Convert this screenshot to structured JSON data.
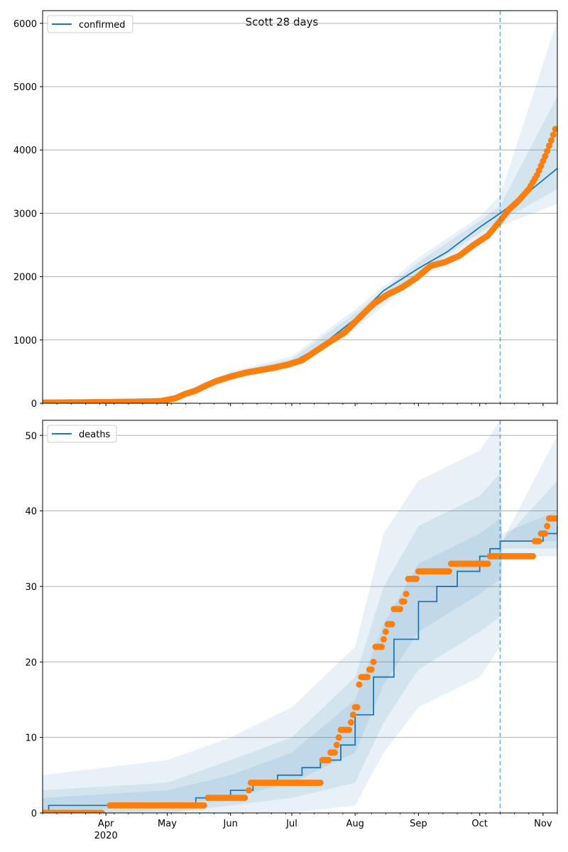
{
  "figure": {
    "title": "Scott 28 days",
    "colors": {
      "model": "#1f77b4",
      "observed": "#ff7f0e",
      "band": "#1f77b4",
      "grid": "#b0b0b0",
      "forecast_line": "#1f77b4"
    }
  },
  "chart_data": [
    {
      "type": "line",
      "legend": [
        "confirmed"
      ],
      "legend_position": "upper-left",
      "grid": true,
      "xlim": [
        "2020-03-01",
        "2020-11-08"
      ],
      "ylim": [
        0,
        6200
      ],
      "yticks": [
        0,
        1000,
        2000,
        3000,
        4000,
        5000,
        6000
      ],
      "xticks": [
        {
          "date": "2020-04-01",
          "label": "Apr",
          "sublabel": "2020"
        },
        {
          "date": "2020-05-01",
          "label": "May"
        },
        {
          "date": "2020-06-01",
          "label": "Jun"
        },
        {
          "date": "2020-07-01",
          "label": "Jul"
        },
        {
          "date": "2020-08-01",
          "label": "Aug"
        },
        {
          "date": "2020-09-01",
          "label": "Sep"
        },
        {
          "date": "2020-10-01",
          "label": "Oct"
        },
        {
          "date": "2020-11-01",
          "label": "Nov"
        }
      ],
      "forecast_start": "2020-10-11",
      "model_series": {
        "name": "confirmed",
        "x": [
          "2020-03-01",
          "2020-04-10",
          "2020-04-25",
          "2020-05-05",
          "2020-05-15",
          "2020-06-01",
          "2020-06-15",
          "2020-07-01",
          "2020-07-15",
          "2020-08-01",
          "2020-08-15",
          "2020-09-01",
          "2020-09-15",
          "2020-10-01",
          "2020-10-11",
          "2020-10-25",
          "2020-11-08"
        ],
        "y": [
          0,
          20,
          30,
          60,
          220,
          450,
          540,
          640,
          900,
          1330,
          1780,
          2130,
          2390,
          2780,
          3000,
          3340,
          3710
        ]
      },
      "bands": [
        {
          "x": [
            "2020-03-01",
            "2020-05-01",
            "2020-06-01",
            "2020-07-01",
            "2020-08-01",
            "2020-09-01",
            "2020-10-01",
            "2020-10-11",
            "2020-11-08"
          ],
          "lo": [
            0,
            30,
            400,
            580,
            1180,
            1980,
            2620,
            2800,
            3150
          ],
          "hi": [
            0,
            80,
            500,
            740,
            1480,
            2300,
            2950,
            3280,
            6050
          ]
        },
        {
          "x": [
            "2020-03-01",
            "2020-05-01",
            "2020-06-01",
            "2020-07-01",
            "2020-08-01",
            "2020-09-01",
            "2020-10-01",
            "2020-10-11",
            "2020-11-08"
          ],
          "lo": [
            0,
            40,
            420,
            610,
            1250,
            2050,
            2690,
            2880,
            3380
          ],
          "hi": [
            0,
            70,
            480,
            700,
            1420,
            2230,
            2880,
            3120,
            4850
          ]
        }
      ],
      "observed": {
        "name": "observed",
        "x": [
          "2020-03-01",
          "2020-03-20",
          "2020-04-01",
          "2020-04-15",
          "2020-04-28",
          "2020-05-05",
          "2020-05-10",
          "2020-05-15",
          "2020-05-20",
          "2020-05-25",
          "2020-06-01",
          "2020-06-08",
          "2020-06-15",
          "2020-06-22",
          "2020-06-29",
          "2020-07-06",
          "2020-07-13",
          "2020-07-20",
          "2020-07-27",
          "2020-08-03",
          "2020-08-10",
          "2020-08-17",
          "2020-08-24",
          "2020-08-31",
          "2020-09-07",
          "2020-09-14",
          "2020-09-21",
          "2020-09-28",
          "2020-10-05",
          "2020-10-11",
          "2020-10-15",
          "2020-10-20",
          "2020-10-25",
          "2020-10-29",
          "2020-11-02",
          "2020-11-05",
          "2020-11-07"
        ],
        "y": [
          10,
          15,
          20,
          25,
          35,
          80,
          150,
          200,
          280,
          350,
          420,
          480,
          520,
          560,
          610,
          680,
          830,
          980,
          1120,
          1350,
          1570,
          1720,
          1830,
          1980,
          2170,
          2230,
          2330,
          2500,
          2650,
          2880,
          3050,
          3200,
          3380,
          3600,
          3900,
          4150,
          4330
        ]
      }
    },
    {
      "type": "line",
      "legend": [
        "deaths"
      ],
      "legend_position": "upper-left",
      "grid": true,
      "xlim": [
        "2020-03-01",
        "2020-11-08"
      ],
      "ylim": [
        0,
        52
      ],
      "yticks": [
        0,
        10,
        20,
        30,
        40,
        50
      ],
      "xticks": [
        {
          "date": "2020-04-01",
          "label": "Apr",
          "sublabel": "2020"
        },
        {
          "date": "2020-05-01",
          "label": "May"
        },
        {
          "date": "2020-06-01",
          "label": "Jun"
        },
        {
          "date": "2020-07-01",
          "label": "Jul"
        },
        {
          "date": "2020-08-01",
          "label": "Aug"
        },
        {
          "date": "2020-09-01",
          "label": "Sep"
        },
        {
          "date": "2020-10-01",
          "label": "Oct"
        },
        {
          "date": "2020-11-01",
          "label": "Nov"
        }
      ],
      "forecast_start": "2020-10-11",
      "model_series": {
        "name": "deaths",
        "x": [
          "2020-03-01",
          "2020-03-04",
          "2020-05-15",
          "2020-06-01",
          "2020-06-12",
          "2020-06-24",
          "2020-07-06",
          "2020-07-15",
          "2020-07-25",
          "2020-08-01",
          "2020-08-10",
          "2020-08-20",
          "2020-09-01",
          "2020-09-10",
          "2020-09-20",
          "2020-10-01",
          "2020-10-06",
          "2020-10-11",
          "2020-10-25",
          "2020-11-01",
          "2020-11-08"
        ],
        "y": [
          0,
          1,
          2,
          3,
          4,
          5,
          6,
          7,
          9,
          13,
          18,
          23,
          28,
          30,
          32,
          34,
          35,
          36,
          36,
          37,
          38
        ]
      },
      "bands": [
        {
          "x": [
            "2020-03-01",
            "2020-05-01",
            "2020-06-01",
            "2020-07-01",
            "2020-08-01",
            "2020-08-15",
            "2020-09-01",
            "2020-10-01",
            "2020-10-11",
            "2020-10-12",
            "2020-11-08"
          ],
          "lo": [
            0,
            0,
            0,
            0,
            1,
            8,
            14,
            18,
            22,
            34,
            34
          ],
          "hi": [
            5,
            7,
            10,
            14,
            22,
            37,
            44,
            48,
            52,
            36,
            50
          ]
        },
        {
          "x": [
            "2020-03-01",
            "2020-05-01",
            "2020-06-01",
            "2020-07-01",
            "2020-08-01",
            "2020-08-15",
            "2020-09-01",
            "2020-10-01",
            "2020-10-11",
            "2020-10-12",
            "2020-11-08"
          ],
          "lo": [
            0,
            0,
            1,
            2,
            4,
            12,
            19,
            24,
            26,
            35,
            35
          ],
          "hi": [
            3,
            4,
            7,
            10,
            18,
            30,
            38,
            42,
            45,
            36,
            44
          ]
        },
        {
          "x": [
            "2020-03-01",
            "2020-05-01",
            "2020-06-01",
            "2020-07-01",
            "2020-08-01",
            "2020-08-15",
            "2020-09-01",
            "2020-10-01",
            "2020-10-11",
            "2020-10-12",
            "2020-11-08"
          ],
          "lo": [
            0,
            1,
            2,
            4,
            8,
            17,
            24,
            29,
            31,
            36,
            36
          ],
          "hi": [
            2,
            3,
            5,
            8,
            15,
            25,
            33,
            37,
            39,
            37,
            40
          ]
        }
      ],
      "observed": {
        "name": "observed",
        "steps": [
          {
            "from": "2020-03-01",
            "to": "2020-03-30",
            "y": 0
          },
          {
            "from": "2020-04-03",
            "to": "2020-05-19",
            "y": 1
          },
          {
            "from": "2020-05-21",
            "to": "2020-06-08",
            "y": 2
          },
          {
            "from": "2020-06-10",
            "to": "2020-06-10",
            "y": 3
          },
          {
            "from": "2020-06-11",
            "to": "2020-07-15",
            "y": 4
          },
          {
            "from": "2020-07-16",
            "to": "2020-07-19",
            "y": 7
          },
          {
            "from": "2020-07-20",
            "to": "2020-07-22",
            "y": 8
          },
          {
            "from": "2020-07-23",
            "to": "2020-07-23",
            "y": 9
          },
          {
            "from": "2020-07-24",
            "to": "2020-07-24",
            "y": 10
          },
          {
            "from": "2020-07-25",
            "to": "2020-07-29",
            "y": 11
          },
          {
            "from": "2020-07-30",
            "to": "2020-07-30",
            "y": 12
          },
          {
            "from": "2020-07-31",
            "to": "2020-07-31",
            "y": 13
          },
          {
            "from": "2020-08-01",
            "to": "2020-08-02",
            "y": 14
          },
          {
            "from": "2020-08-03",
            "to": "2020-08-03",
            "y": 17
          },
          {
            "from": "2020-08-04",
            "to": "2020-08-07",
            "y": 18
          },
          {
            "from": "2020-08-08",
            "to": "2020-08-09",
            "y": 19
          },
          {
            "from": "2020-08-10",
            "to": "2020-08-10",
            "y": 20
          },
          {
            "from": "2020-08-11",
            "to": "2020-08-14",
            "y": 22
          },
          {
            "from": "2020-08-15",
            "to": "2020-08-15",
            "y": 23
          },
          {
            "from": "2020-08-16",
            "to": "2020-08-16",
            "y": 24
          },
          {
            "from": "2020-08-17",
            "to": "2020-08-19",
            "y": 25
          },
          {
            "from": "2020-08-20",
            "to": "2020-08-23",
            "y": 27
          },
          {
            "from": "2020-08-24",
            "to": "2020-08-25",
            "y": 28
          },
          {
            "from": "2020-08-26",
            "to": "2020-08-26",
            "y": 29
          },
          {
            "from": "2020-08-27",
            "to": "2020-08-31",
            "y": 31
          },
          {
            "from": "2020-09-01",
            "to": "2020-09-16",
            "y": 32
          },
          {
            "from": "2020-09-17",
            "to": "2020-10-05",
            "y": 33
          },
          {
            "from": "2020-10-06",
            "to": "2020-10-27",
            "y": 34
          },
          {
            "from": "2020-10-28",
            "to": "2020-10-30",
            "y": 36
          },
          {
            "from": "2020-10-31",
            "to": "2020-11-02",
            "y": 37
          },
          {
            "from": "2020-11-03",
            "to": "2020-11-03",
            "y": 38
          },
          {
            "from": "2020-11-04",
            "to": "2020-11-07",
            "y": 39
          }
        ]
      }
    }
  ]
}
